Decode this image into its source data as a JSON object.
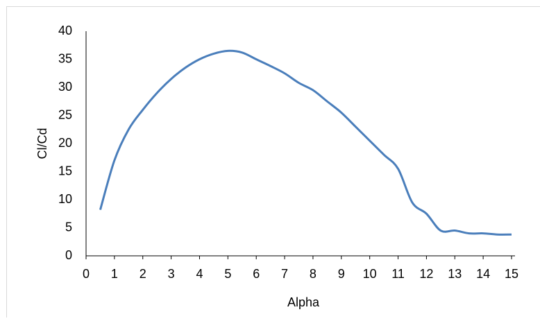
{
  "chart_data": {
    "type": "line",
    "x_label": "Alpha",
    "y_label": "Cl/Cd",
    "series": [
      {
        "name": "Cl/Cd",
        "color": "#4a7ebb",
        "x": [
          0.5,
          1,
          1.5,
          2,
          2.5,
          3,
          3.5,
          4,
          4.5,
          5,
          5.5,
          6,
          6.5,
          7,
          7.5,
          8,
          8.5,
          9,
          9.5,
          10,
          10.5,
          11,
          11.5,
          12,
          12.5,
          13,
          13.5,
          14,
          14.5,
          15
        ],
        "values": [
          8.2,
          17,
          22.5,
          26,
          29,
          31.5,
          33.5,
          35,
          36,
          36.5,
          36.2,
          35,
          33.8,
          32.5,
          30.8,
          29.5,
          27.5,
          25.5,
          23,
          20.5,
          18,
          15.5,
          9.5,
          7.5,
          4.5,
          4.5,
          4,
          4,
          3.8,
          3.8
        ]
      }
    ],
    "xlim": [
      0,
      15
    ],
    "xticks": [
      0,
      1,
      2,
      3,
      4,
      5,
      6,
      7,
      8,
      9,
      10,
      11,
      12,
      13,
      14,
      15
    ],
    "ylim": [
      0,
      40
    ],
    "yticks": [
      0,
      5,
      10,
      15,
      20,
      25,
      30,
      35,
      40
    ],
    "grid": false
  }
}
